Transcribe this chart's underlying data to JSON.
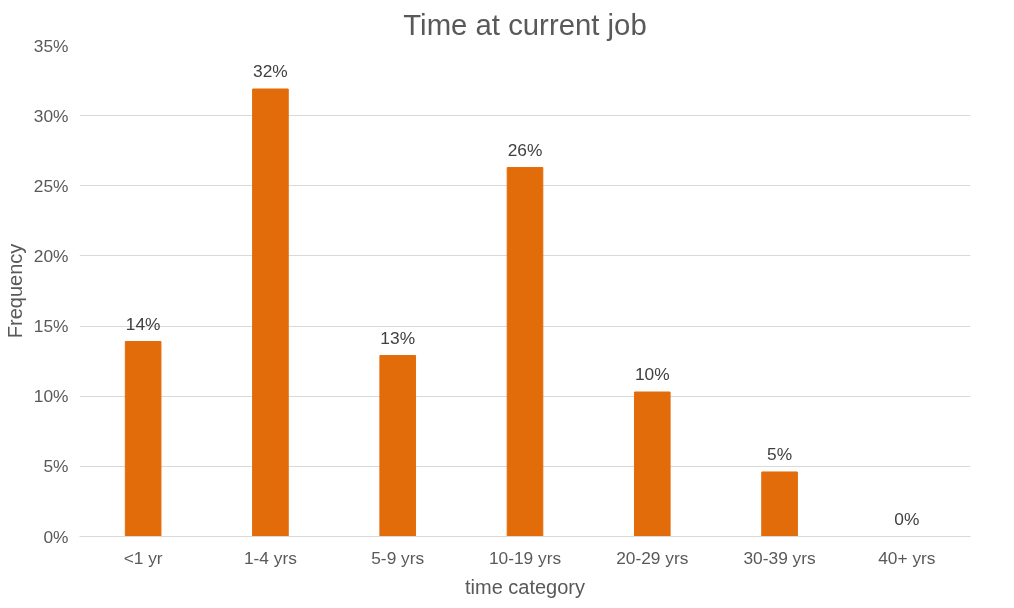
{
  "chart_data": {
    "type": "bar",
    "title": "Time at current job",
    "xlabel": "time category",
    "ylabel": "Frequency",
    "categories": [
      "<1 yr",
      "1-4 yrs",
      "5-9 yrs",
      "10-19 yrs",
      "20-29 yrs",
      "30-39 yrs",
      "40+ yrs"
    ],
    "values": [
      13.9,
      31.9,
      12.9,
      26.3,
      10.3,
      4.6,
      0
    ],
    "value_labels": [
      "14%",
      "32%",
      "13%",
      "26%",
      "10%",
      "5%",
      "0%"
    ],
    "color": "#e36c0a",
    "ylim": [
      0,
      35
    ],
    "yticks": [
      {
        "value": 0,
        "label": "0%"
      },
      {
        "value": 5,
        "label": "5%"
      },
      {
        "value": 10,
        "label": "10%"
      },
      {
        "value": 15,
        "label": "15%"
      },
      {
        "value": 20,
        "label": "20%"
      },
      {
        "value": 25,
        "label": "25%"
      },
      {
        "value": 30,
        "label": "30%"
      },
      {
        "value": 35,
        "label": "35%"
      }
    ],
    "grid": "y"
  }
}
